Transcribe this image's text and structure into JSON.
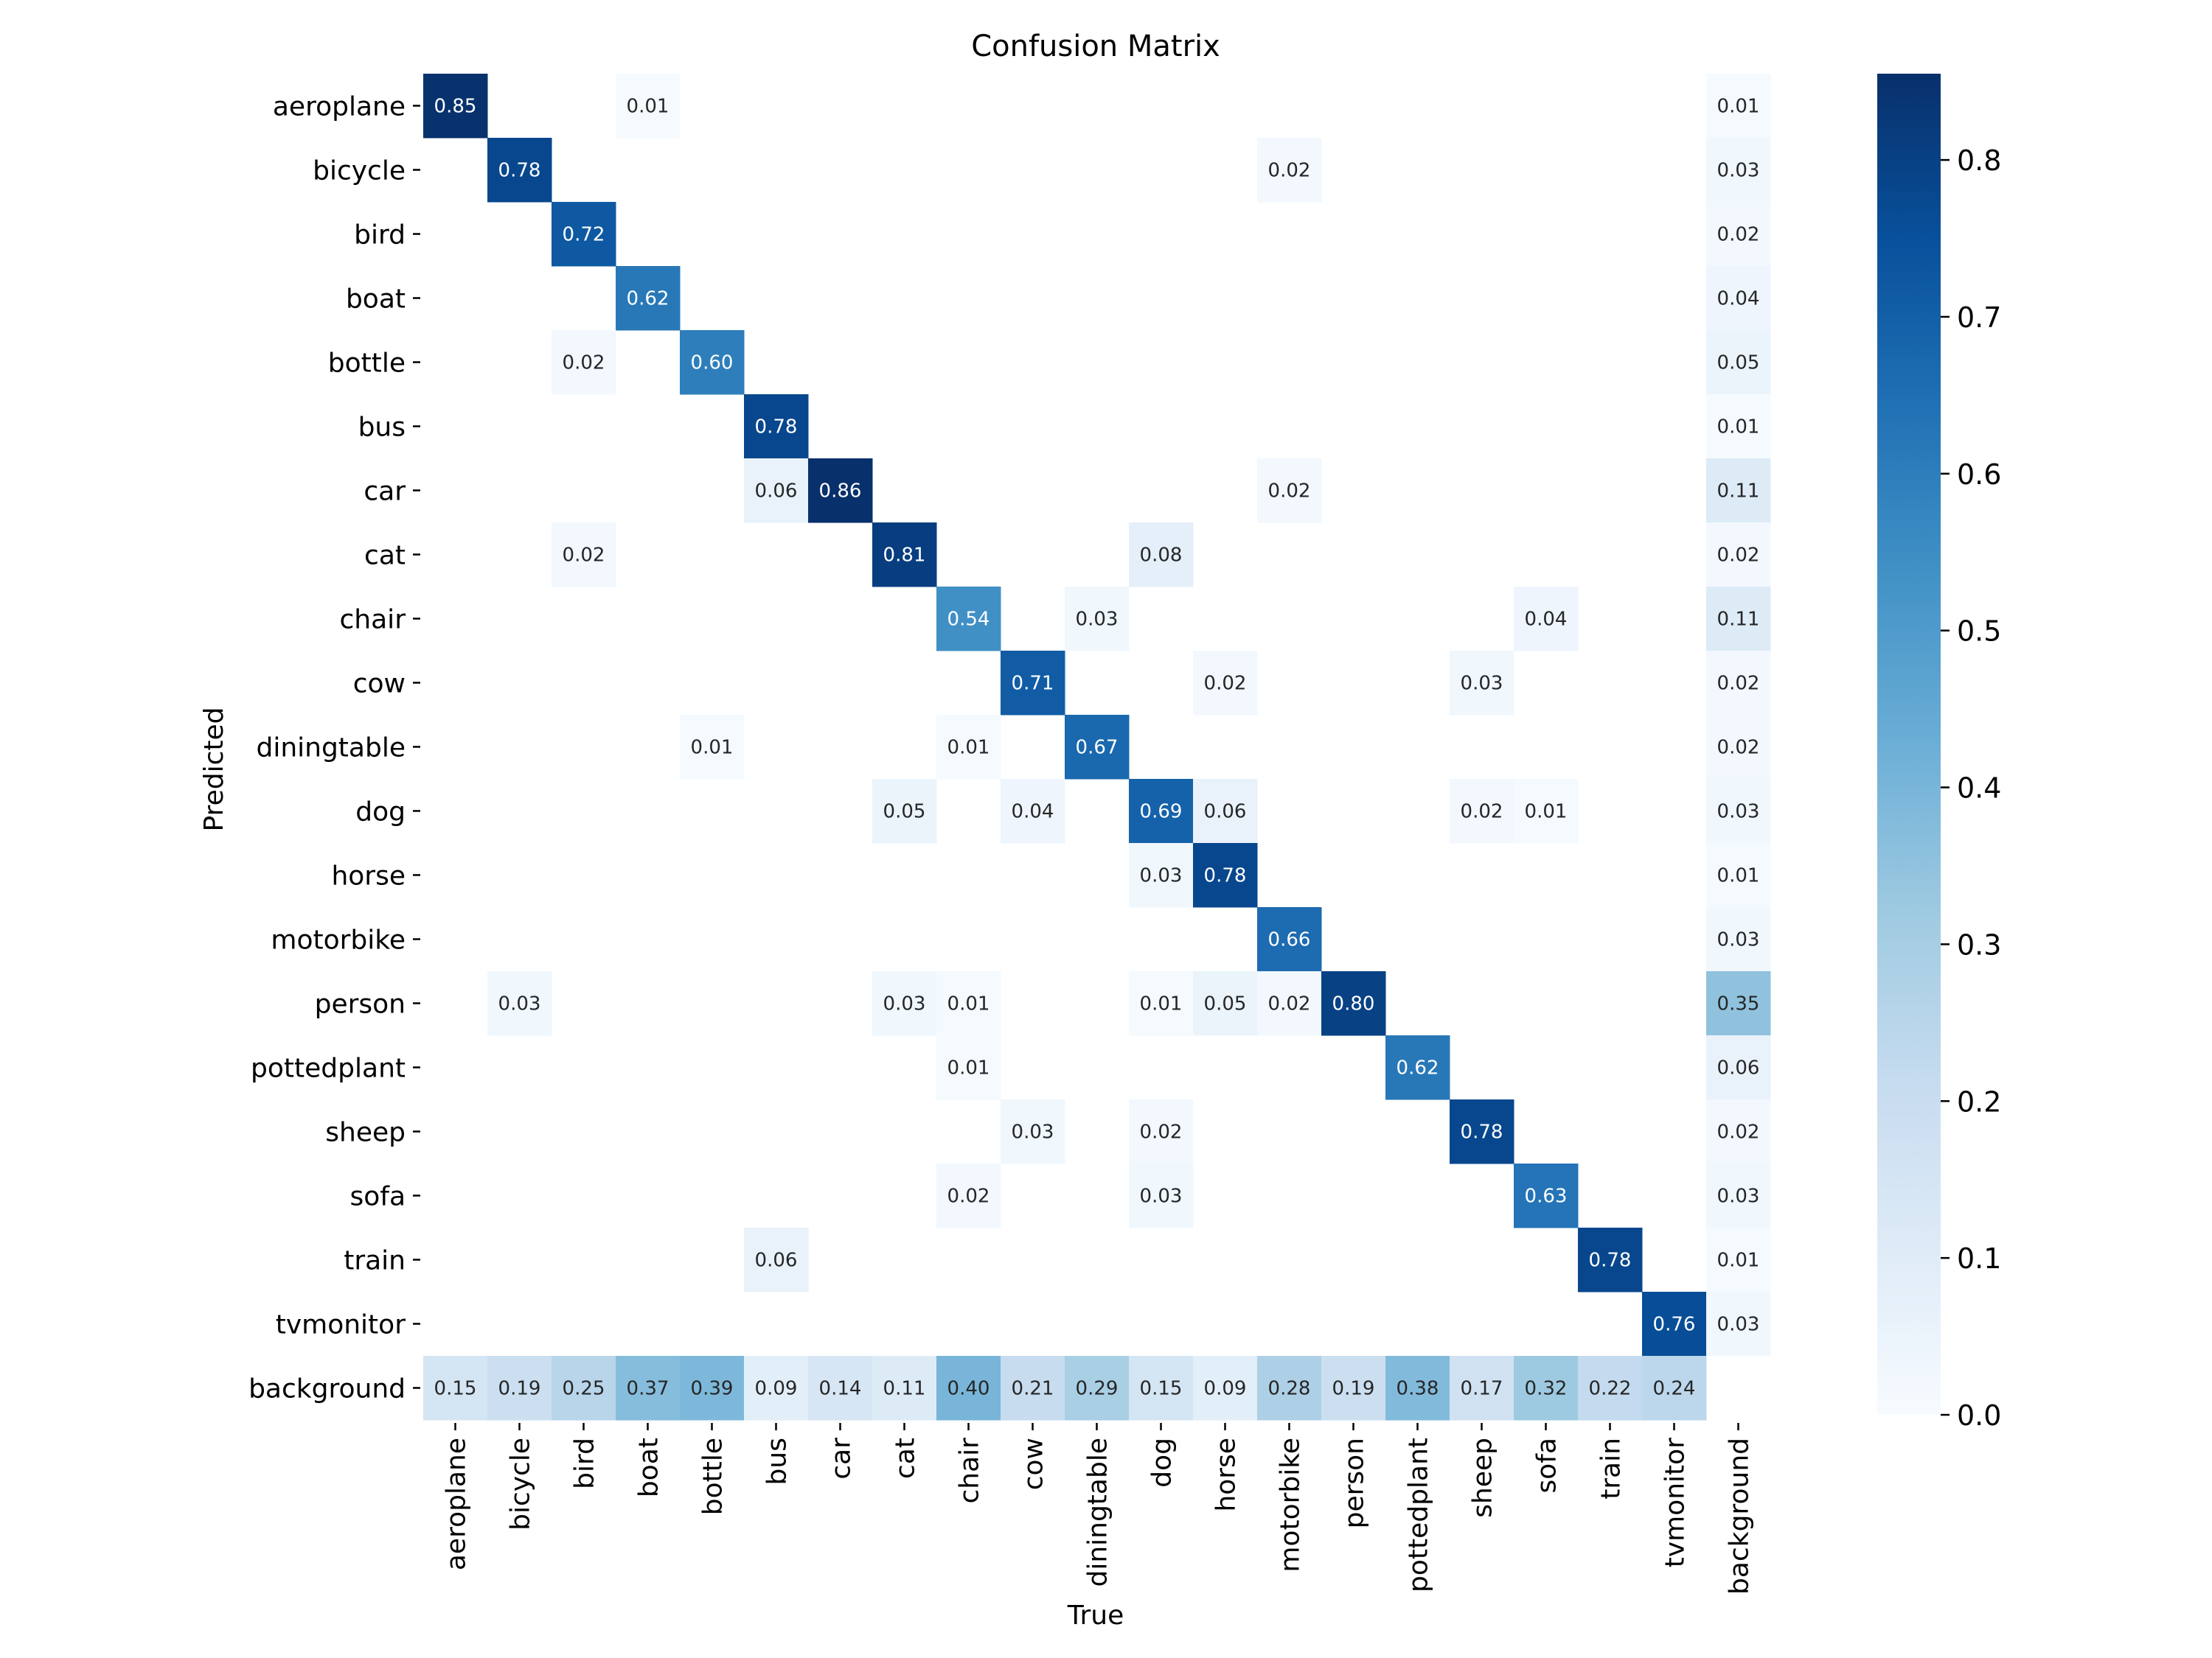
{
  "chart_data": {
    "type": "heatmap",
    "title": "Confusion Matrix",
    "xlabel": "True",
    "ylabel": "Predicted",
    "categories": [
      "aeroplane",
      "bicycle",
      "bird",
      "boat",
      "bottle",
      "bus",
      "car",
      "cat",
      "chair",
      "cow",
      "diningtable",
      "dog",
      "horse",
      "motorbike",
      "person",
      "pottedplant",
      "sheep",
      "sofa",
      "train",
      "tvmonitor",
      "background"
    ],
    "value_range": [
      0,
      0.855
    ],
    "colorbar_ticks": [
      "0.0",
      "0.1",
      "0.2",
      "0.3",
      "0.4",
      "0.5",
      "0.6",
      "0.7",
      "0.8"
    ],
    "colormap": "Blues",
    "cells": [
      {
        "row": 0,
        "col": 0,
        "value": 0.85
      },
      {
        "row": 0,
        "col": 3,
        "value": 0.01
      },
      {
        "row": 0,
        "col": 20,
        "value": 0.01
      },
      {
        "row": 1,
        "col": 1,
        "value": 0.78
      },
      {
        "row": 1,
        "col": 13,
        "value": 0.02
      },
      {
        "row": 1,
        "col": 20,
        "value": 0.03
      },
      {
        "row": 2,
        "col": 2,
        "value": 0.72
      },
      {
        "row": 2,
        "col": 20,
        "value": 0.02
      },
      {
        "row": 3,
        "col": 3,
        "value": 0.62
      },
      {
        "row": 3,
        "col": 20,
        "value": 0.04
      },
      {
        "row": 4,
        "col": 2,
        "value": 0.02
      },
      {
        "row": 4,
        "col": 4,
        "value": 0.6
      },
      {
        "row": 4,
        "col": 20,
        "value": 0.05
      },
      {
        "row": 5,
        "col": 5,
        "value": 0.78
      },
      {
        "row": 5,
        "col": 20,
        "value": 0.01
      },
      {
        "row": 6,
        "col": 5,
        "value": 0.06
      },
      {
        "row": 6,
        "col": 6,
        "value": 0.86
      },
      {
        "row": 6,
        "col": 13,
        "value": 0.02
      },
      {
        "row": 6,
        "col": 20,
        "value": 0.11
      },
      {
        "row": 7,
        "col": 2,
        "value": 0.02
      },
      {
        "row": 7,
        "col": 7,
        "value": 0.81
      },
      {
        "row": 7,
        "col": 11,
        "value": 0.08
      },
      {
        "row": 7,
        "col": 20,
        "value": 0.02
      },
      {
        "row": 8,
        "col": 8,
        "value": 0.54
      },
      {
        "row": 8,
        "col": 10,
        "value": 0.03
      },
      {
        "row": 8,
        "col": 17,
        "value": 0.04
      },
      {
        "row": 8,
        "col": 20,
        "value": 0.11
      },
      {
        "row": 9,
        "col": 9,
        "value": 0.71
      },
      {
        "row": 9,
        "col": 12,
        "value": 0.02
      },
      {
        "row": 9,
        "col": 16,
        "value": 0.03
      },
      {
        "row": 9,
        "col": 20,
        "value": 0.02
      },
      {
        "row": 10,
        "col": 4,
        "value": 0.01
      },
      {
        "row": 10,
        "col": 8,
        "value": 0.01
      },
      {
        "row": 10,
        "col": 10,
        "value": 0.67
      },
      {
        "row": 10,
        "col": 20,
        "value": 0.02
      },
      {
        "row": 11,
        "col": 7,
        "value": 0.05
      },
      {
        "row": 11,
        "col": 9,
        "value": 0.04
      },
      {
        "row": 11,
        "col": 11,
        "value": 0.69
      },
      {
        "row": 11,
        "col": 12,
        "value": 0.06
      },
      {
        "row": 11,
        "col": 16,
        "value": 0.02
      },
      {
        "row": 11,
        "col": 17,
        "value": 0.01
      },
      {
        "row": 11,
        "col": 20,
        "value": 0.03
      },
      {
        "row": 12,
        "col": 11,
        "value": 0.03
      },
      {
        "row": 12,
        "col": 12,
        "value": 0.78
      },
      {
        "row": 12,
        "col": 20,
        "value": 0.01
      },
      {
        "row": 13,
        "col": 13,
        "value": 0.66
      },
      {
        "row": 13,
        "col": 20,
        "value": 0.03
      },
      {
        "row": 14,
        "col": 1,
        "value": 0.03
      },
      {
        "row": 14,
        "col": 7,
        "value": 0.03
      },
      {
        "row": 14,
        "col": 8,
        "value": 0.01
      },
      {
        "row": 14,
        "col": 11,
        "value": 0.01
      },
      {
        "row": 14,
        "col": 12,
        "value": 0.05
      },
      {
        "row": 14,
        "col": 13,
        "value": 0.02
      },
      {
        "row": 14,
        "col": 14,
        "value": 0.8
      },
      {
        "row": 14,
        "col": 20,
        "value": 0.35
      },
      {
        "row": 15,
        "col": 8,
        "value": 0.01
      },
      {
        "row": 15,
        "col": 15,
        "value": 0.62
      },
      {
        "row": 15,
        "col": 20,
        "value": 0.06
      },
      {
        "row": 16,
        "col": 9,
        "value": 0.03
      },
      {
        "row": 16,
        "col": 11,
        "value": 0.02
      },
      {
        "row": 16,
        "col": 16,
        "value": 0.78
      },
      {
        "row": 16,
        "col": 20,
        "value": 0.02
      },
      {
        "row": 17,
        "col": 8,
        "value": 0.02
      },
      {
        "row": 17,
        "col": 11,
        "value": 0.03
      },
      {
        "row": 17,
        "col": 17,
        "value": 0.63
      },
      {
        "row": 17,
        "col": 20,
        "value": 0.03
      },
      {
        "row": 18,
        "col": 5,
        "value": 0.06
      },
      {
        "row": 18,
        "col": 18,
        "value": 0.78
      },
      {
        "row": 18,
        "col": 20,
        "value": 0.01
      },
      {
        "row": 19,
        "col": 19,
        "value": 0.76
      },
      {
        "row": 19,
        "col": 20,
        "value": 0.03
      },
      {
        "row": 20,
        "col": 0,
        "value": 0.15
      },
      {
        "row": 20,
        "col": 1,
        "value": 0.19
      },
      {
        "row": 20,
        "col": 2,
        "value": 0.25
      },
      {
        "row": 20,
        "col": 3,
        "value": 0.37
      },
      {
        "row": 20,
        "col": 4,
        "value": 0.39
      },
      {
        "row": 20,
        "col": 5,
        "value": 0.09
      },
      {
        "row": 20,
        "col": 6,
        "value": 0.14
      },
      {
        "row": 20,
        "col": 7,
        "value": 0.11
      },
      {
        "row": 20,
        "col": 8,
        "value": 0.4
      },
      {
        "row": 20,
        "col": 9,
        "value": 0.21
      },
      {
        "row": 20,
        "col": 10,
        "value": 0.29
      },
      {
        "row": 20,
        "col": 11,
        "value": 0.15
      },
      {
        "row": 20,
        "col": 12,
        "value": 0.09
      },
      {
        "row": 20,
        "col": 13,
        "value": 0.28
      },
      {
        "row": 20,
        "col": 14,
        "value": 0.19
      },
      {
        "row": 20,
        "col": 15,
        "value": 0.38
      },
      {
        "row": 20,
        "col": 16,
        "value": 0.17
      },
      {
        "row": 20,
        "col": 17,
        "value": 0.32
      },
      {
        "row": 20,
        "col": 18,
        "value": 0.22
      },
      {
        "row": 20,
        "col": 19,
        "value": 0.24
      }
    ]
  }
}
